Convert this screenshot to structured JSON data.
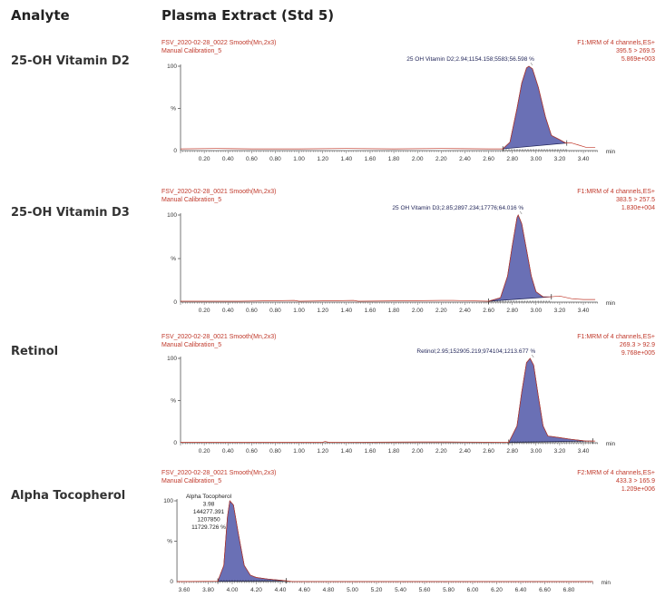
{
  "header": {
    "analyte": "Analyte",
    "extract": "Plasma Extract (Std 5)"
  },
  "analytes": [
    "25-OH Vitamin D2",
    "25-OH Vitamin D3",
    "Retinol",
    "Alpha Tocopherol"
  ],
  "colors": {
    "trace": "#c0392b",
    "peak_fill": "#6a70b5",
    "peak_line": "#1f2357",
    "header_text": "#c0392b",
    "axis": "#555555"
  },
  "chart_data": [
    {
      "type": "line",
      "file": "FSV_2020-02-28_0022 Smooth(Mn,2x3)",
      "calibration": "Manual Calibration_5",
      "channel": [
        "F1:MRM of 4 channels,ES+",
        "395.5 > 269.5",
        "5.869e+003"
      ],
      "peak_label": [
        "25 OH Vitamin D2;2.94;1154.158;5583;56.598 %"
      ],
      "peak_rt": 2.94,
      "integration_range": [
        2.72,
        3.26
      ],
      "ylabel": "%",
      "xlabel": "min",
      "yticks": [
        "100",
        "0"
      ],
      "xticks": [
        "0.20",
        "0.40",
        "0.60",
        "0.80",
        "1.00",
        "1.20",
        "1.40",
        "1.60",
        "1.80",
        "2.00",
        "2.20",
        "2.40",
        "2.60",
        "2.80",
        "3.00",
        "3.20",
        "3.40"
      ],
      "xlim": [
        0,
        3.52
      ],
      "ylim": [
        0,
        100
      ],
      "x": [
        0,
        0.3,
        0.6,
        1.0,
        1.4,
        1.8,
        2.2,
        2.6,
        2.72,
        2.78,
        2.84,
        2.88,
        2.92,
        2.94,
        2.97,
        3.02,
        3.08,
        3.13,
        3.2,
        3.25,
        3.3,
        3.35,
        3.42,
        3.5
      ],
      "y": [
        2,
        2.5,
        2,
        2,
        2.5,
        2,
        2.5,
        2,
        2,
        10,
        50,
        80,
        98,
        100,
        97,
        75,
        40,
        18,
        13,
        9,
        9,
        7,
        4,
        4
      ]
    },
    {
      "type": "line",
      "file": "FSV_2020-02-28_0021 Smooth(Mn,2x3)",
      "calibration": "Manual Calibration_5",
      "channel": [
        "F1:MRM of 4 channels,ES+",
        "383.5 > 257.5",
        "1.830e+004"
      ],
      "peak_label": [
        "25 OH Vitamin D3;2.85;2897.234;17776;64.016 %"
      ],
      "peak_rt": 2.85,
      "integration_range": [
        2.6,
        3.13
      ],
      "ylabel": "%",
      "xlabel": "min",
      "yticks": [
        "100",
        "0"
      ],
      "xticks": [
        "0.20",
        "0.40",
        "0.60",
        "0.80",
        "1.00",
        "1.20",
        "1.40",
        "1.60",
        "1.80",
        "2.00",
        "2.20",
        "2.40",
        "2.60",
        "2.80",
        "3.00",
        "3.20",
        "3.40"
      ],
      "xlim": [
        0,
        3.52
      ],
      "ylim": [
        0,
        100
      ],
      "x": [
        0,
        0.5,
        0.96,
        1.0,
        1.46,
        1.5,
        2.2,
        2.3,
        2.6,
        2.7,
        2.76,
        2.8,
        2.84,
        2.85,
        2.88,
        2.92,
        2.96,
        3.0,
        3.06,
        3.12,
        3.2,
        3.3,
        3.4,
        3.5
      ],
      "y": [
        1,
        1,
        2,
        1,
        2,
        1,
        2,
        2,
        1,
        5,
        30,
        65,
        97,
        100,
        90,
        60,
        30,
        12,
        6,
        6,
        7,
        4,
        3,
        3
      ]
    },
    {
      "type": "line",
      "file": "FSV_2020-02-28_0021 Smooth(Mn,2x3)",
      "calibration": "Manual Calibration_5",
      "channel": [
        "F1:MRM of 4 channels,ES+",
        "269.3 > 92.9",
        "9.768e+005"
      ],
      "peak_label": [
        "Retinol;2.95;152905.219;974104;1213.677 %"
      ],
      "peak_rt": 2.95,
      "integration_range": [
        2.77,
        3.48
      ],
      "ylabel": "%",
      "xlabel": "min",
      "yticks": [
        "100",
        "0"
      ],
      "xticks": [
        "0.20",
        "0.40",
        "0.60",
        "0.80",
        "1.00",
        "1.20",
        "1.40",
        "1.60",
        "1.80",
        "2.00",
        "2.20",
        "2.40",
        "2.60",
        "2.80",
        "3.00",
        "3.20",
        "3.40"
      ],
      "xlim": [
        0,
        3.52
      ],
      "ylim": [
        0,
        100
      ],
      "x": [
        0,
        1.2,
        1.22,
        1.25,
        2.0,
        2.25,
        2.77,
        2.84,
        2.88,
        2.92,
        2.95,
        2.98,
        3.02,
        3.06,
        3.1,
        3.2,
        3.3,
        3.42,
        3.5
      ],
      "y": [
        0.5,
        0.5,
        1.5,
        0.5,
        1,
        1,
        0.5,
        20,
        60,
        95,
        100,
        92,
        55,
        20,
        8,
        6,
        4,
        2,
        2
      ]
    },
    {
      "type": "line",
      "file": "FSV_2020-02-28_0021 Smooth(Mn,2x3)",
      "calibration": "Manual Calibration_5",
      "channel": [
        "F2:MRM of 4 channels,ES+",
        "433.3 > 165.9",
        "1.209e+006"
      ],
      "peak_label": [
        "Alpha Tocopherol",
        "3.98",
        "144277.391",
        "1207850",
        "11729.726 %"
      ],
      "peak_rt": 3.98,
      "integration_range": [
        3.88,
        4.45
      ],
      "ylabel": "%",
      "xlabel": "min",
      "yticks": [
        "100",
        "0"
      ],
      "xticks": [
        "3.60",
        "3.80",
        "4.00",
        "4.20",
        "4.40",
        "4.60",
        "4.80",
        "5.00",
        "5.20",
        "5.40",
        "5.60",
        "5.80",
        "6.00",
        "6.20",
        "6.40",
        "6.60",
        "6.80"
      ],
      "xlim": [
        3.54,
        7.0
      ],
      "ylim": [
        0,
        100
      ],
      "x": [
        3.54,
        3.88,
        3.93,
        3.96,
        3.98,
        4.01,
        4.05,
        4.1,
        4.15,
        4.2,
        4.3,
        4.45,
        4.5,
        7.0
      ],
      "y": [
        0,
        0.5,
        20,
        80,
        100,
        95,
        60,
        20,
        8,
        5,
        3,
        1,
        0,
        0
      ]
    }
  ]
}
